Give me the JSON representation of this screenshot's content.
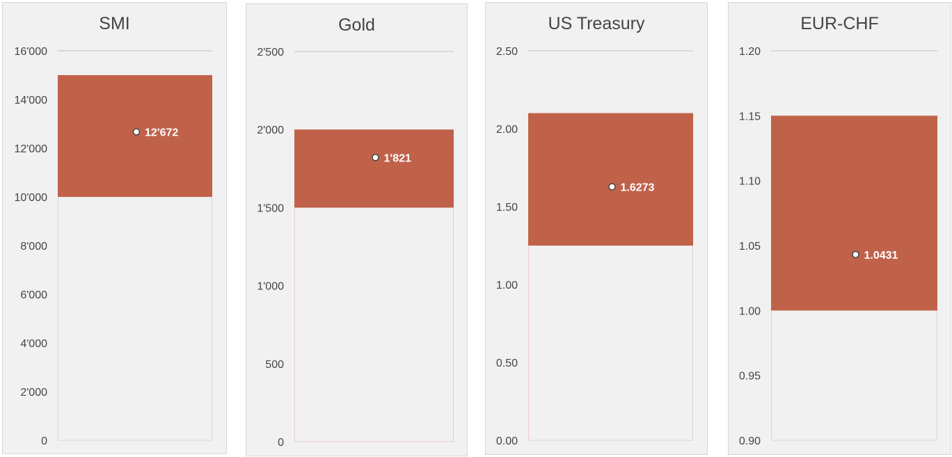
{
  "chart_data": [
    {
      "type": "bar",
      "title": "SMI",
      "ylim": [
        0,
        16000
      ],
      "ticks": [
        0,
        2000,
        4000,
        6000,
        8000,
        10000,
        12000,
        14000,
        16000
      ],
      "tick_labels": [
        "0",
        "2'000",
        "4'000",
        "6'000",
        "8'000",
        "10'000",
        "12'000",
        "14'000",
        "16'000"
      ],
      "range_low": 10000,
      "range_high": 15000,
      "marker_value": 12672,
      "marker_label": "12'672"
    },
    {
      "type": "bar",
      "title": "Gold",
      "ylim": [
        0,
        2500
      ],
      "ticks": [
        0,
        500,
        1000,
        1500,
        2000,
        2500
      ],
      "tick_labels": [
        "0",
        "500",
        "1'000",
        "1'500",
        "2'000",
        "2'500"
      ],
      "range_low": 1500,
      "range_high": 2000,
      "marker_value": 1821,
      "marker_label": "1'821"
    },
    {
      "type": "bar",
      "title": "US Treasury",
      "ylim": [
        0,
        2.5
      ],
      "ticks": [
        0,
        0.5,
        1,
        1.5,
        2,
        2.5
      ],
      "tick_labels": [
        "0.00",
        "0.50",
        "1.00",
        "1.50",
        "2.00",
        "2.50"
      ],
      "range_low": 1.25,
      "range_high": 2.1,
      "marker_value": 1.6273,
      "marker_label": "1.6273"
    },
    {
      "type": "bar",
      "title": "EUR-CHF",
      "ylim": [
        0.9,
        1.2
      ],
      "ticks": [
        0.9,
        0.95,
        1,
        1.05,
        1.1,
        1.15,
        1.2
      ],
      "tick_labels": [
        "0.90",
        "0.95",
        "1.00",
        "1.05",
        "1.10",
        "1.15",
        "1.20"
      ],
      "range_low": 1.0,
      "range_high": 1.15,
      "marker_value": 1.0431,
      "marker_label": "1.0431"
    }
  ],
  "colors": {
    "range": "#c0624a",
    "panel": "#f1f1f1",
    "grid": "#d9d9d9"
  }
}
